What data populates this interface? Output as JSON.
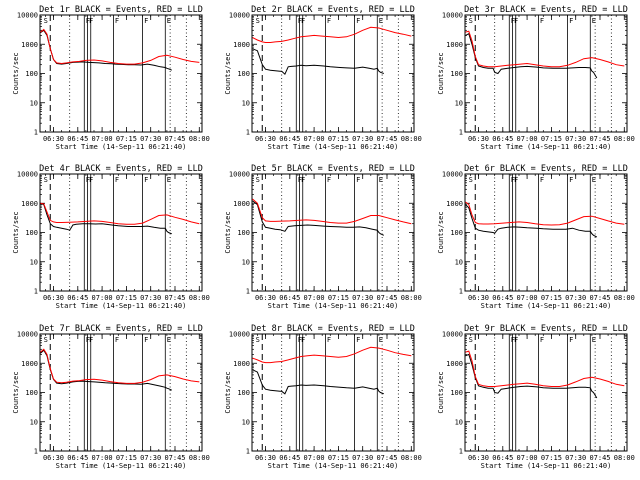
{
  "colors": {
    "events": "#000000",
    "lld": "#ff0000",
    "background": "#ffffff"
  },
  "chart_data": {
    "type": "line",
    "layout": "3x3 grid of panels",
    "xlabel": "Start Time (14-Sep-11 06:21:40)",
    "ylabel": "Counts/sec",
    "x_tick_labels": [
      "06:30",
      "06:45",
      "07:00",
      "07:15",
      "07:30",
      "07:45",
      "08:00"
    ],
    "x_tick_minutes": [
      30,
      45,
      60,
      75,
      90,
      105,
      120
    ],
    "xlim_minutes": [
      21.67,
      121.67
    ],
    "y_scale": "log",
    "ylim": [
      1,
      10000
    ],
    "y_tick_labels": [
      "1",
      "10",
      "100",
      "1000",
      "10000"
    ],
    "y_tick_values": [
      1,
      10,
      100,
      1000,
      10000
    ],
    "series_meta": [
      {
        "key": "events",
        "color": "#000000"
      },
      {
        "key": "lld",
        "color": "#ff0000"
      }
    ],
    "markers": {
      "dashed_minutes": [
        28
      ],
      "dotted_minutes": [
        40,
        102,
        112
      ],
      "solid_minutes": [
        49,
        51,
        53,
        67,
        85,
        99
      ],
      "letters": [
        {
          "text": "S",
          "minute": 23
        },
        {
          "text": "F",
          "minute": 49
        },
        {
          "text": "F",
          "minute": 51
        },
        {
          "text": "F",
          "minute": 67
        },
        {
          "text": "F",
          "minute": 85
        },
        {
          "text": "E",
          "minute": 99
        }
      ]
    },
    "panels": [
      {
        "title": "Det 1r BLACK = Events, RED = LLD",
        "events": {
          "x": [
            22,
            24,
            26,
            28,
            30,
            32,
            35,
            38,
            42,
            45,
            48,
            52,
            55,
            58,
            62,
            66,
            68,
            72,
            76,
            80,
            84,
            88,
            92,
            96,
            99,
            100,
            101,
            103
          ],
          "y": [
            2500,
            3000,
            2000,
            700,
            300,
            220,
            210,
            220,
            240,
            245,
            250,
            240,
            235,
            230,
            220,
            215,
            210,
            205,
            200,
            200,
            195,
            210,
            190,
            170,
            160,
            150,
            145,
            130
          ]
        },
        "lld": {
          "x": [
            22,
            24,
            26,
            28,
            30,
            32,
            35,
            38,
            42,
            46,
            50,
            55,
            60,
            65,
            70,
            75,
            80,
            85,
            90,
            95,
            100,
            105,
            110,
            115,
            120
          ],
          "y": [
            2600,
            3200,
            2200,
            700,
            300,
            230,
            220,
            230,
            250,
            260,
            280,
            290,
            270,
            240,
            220,
            210,
            210,
            230,
            280,
            380,
            420,
            360,
            300,
            260,
            240
          ]
        }
      },
      {
        "title": "Det 2r BLACK = Events, RED = LLD",
        "events": {
          "x": [
            22,
            25,
            28,
            30,
            33,
            36,
            39,
            40,
            42,
            44,
            46,
            49,
            52,
            55,
            60,
            66,
            70,
            76,
            80,
            85,
            90,
            94,
            97,
            99,
            100,
            101,
            103
          ],
          "y": [
            700,
            600,
            200,
            140,
            130,
            125,
            120,
            120,
            95,
            170,
            175,
            180,
            190,
            185,
            190,
            180,
            170,
            160,
            155,
            150,
            165,
            150,
            140,
            150,
            120,
            110,
            100
          ]
        },
        "lld": {
          "x": [
            22,
            25,
            28,
            30,
            33,
            36,
            40,
            44,
            48,
            52,
            56,
            60,
            65,
            70,
            75,
            80,
            85,
            90,
            95,
            100,
            105,
            110,
            115,
            120
          ],
          "y": [
            1700,
            1400,
            1200,
            1150,
            1150,
            1200,
            1250,
            1400,
            1600,
            1800,
            1900,
            2000,
            1900,
            1800,
            1700,
            1800,
            2200,
            3000,
            3800,
            3600,
            3000,
            2500,
            2200,
            1900
          ]
        }
      },
      {
        "title": "Det 3r BLACK = Events, RED = LLD",
        "events": {
          "x": [
            22,
            24,
            26,
            28,
            30,
            33,
            36,
            39,
            40,
            42,
            44,
            48,
            52,
            56,
            60,
            66,
            70,
            76,
            80,
            84,
            88,
            92,
            96,
            99,
            100,
            101,
            103
          ],
          "y": [
            2000,
            2300,
            1000,
            350,
            180,
            160,
            150,
            150,
            110,
            100,
            140,
            150,
            160,
            170,
            175,
            165,
            155,
            150,
            150,
            150,
            155,
            160,
            160,
            155,
            120,
            110,
            70
          ]
        },
        "lld": {
          "x": [
            22,
            24,
            26,
            28,
            30,
            33,
            36,
            40,
            44,
            48,
            52,
            56,
            60,
            65,
            70,
            75,
            80,
            85,
            90,
            95,
            100,
            105,
            110,
            115,
            120
          ],
          "y": [
            2600,
            2800,
            1300,
            380,
            200,
            180,
            170,
            170,
            180,
            190,
            200,
            210,
            220,
            200,
            180,
            170,
            170,
            190,
            240,
            320,
            350,
            300,
            250,
            200,
            180
          ]
        }
      },
      {
        "title": "Det 4r BLACK = Events, RED = LLD",
        "events": {
          "x": [
            22,
            24,
            26,
            28,
            30,
            32,
            35,
            38,
            40,
            42,
            44,
            48,
            52,
            56,
            60,
            66,
            70,
            76,
            80,
            84,
            88,
            92,
            96,
            99,
            100,
            101,
            103
          ],
          "y": [
            1000,
            900,
            400,
            200,
            160,
            150,
            140,
            130,
            120,
            180,
            190,
            200,
            200,
            195,
            200,
            180,
            170,
            160,
            160,
            160,
            165,
            150,
            140,
            140,
            110,
            100,
            90
          ]
        },
        "lld": {
          "x": [
            22,
            24,
            26,
            28,
            30,
            32,
            35,
            40,
            45,
            50,
            55,
            60,
            65,
            70,
            75,
            80,
            85,
            90,
            95,
            100,
            105,
            110,
            115,
            120
          ],
          "y": [
            1000,
            950,
            500,
            260,
            230,
            220,
            220,
            225,
            230,
            240,
            250,
            240,
            220,
            200,
            190,
            190,
            210,
            280,
            380,
            400,
            330,
            280,
            230,
            200
          ]
        }
      },
      {
        "title": "Det 5r BLACK = Events, RED = LLD",
        "events": {
          "x": [
            22,
            25,
            28,
            30,
            33,
            36,
            39,
            40,
            42,
            44,
            48,
            52,
            56,
            60,
            66,
            70,
            76,
            80,
            84,
            88,
            92,
            96,
            99,
            100,
            101,
            103
          ],
          "y": [
            1200,
            900,
            230,
            150,
            140,
            130,
            125,
            120,
            110,
            160,
            170,
            175,
            180,
            175,
            165,
            160,
            155,
            150,
            150,
            155,
            145,
            130,
            120,
            100,
            90,
            80
          ]
        },
        "lld": {
          "x": [
            22,
            25,
            28,
            30,
            33,
            36,
            40,
            45,
            50,
            55,
            60,
            65,
            70,
            75,
            80,
            85,
            90,
            95,
            100,
            105,
            110,
            115,
            120
          ],
          "y": [
            1400,
            1000,
            320,
            250,
            240,
            240,
            245,
            250,
            260,
            270,
            260,
            240,
            220,
            210,
            210,
            240,
            300,
            380,
            380,
            320,
            270,
            230,
            200
          ]
        }
      },
      {
        "title": "Det 6r BLACK = Events, RED = LLD",
        "events": {
          "x": [
            22,
            24,
            26,
            28,
            30,
            33,
            36,
            39,
            40,
            42,
            44,
            48,
            52,
            56,
            60,
            66,
            70,
            76,
            80,
            84,
            88,
            92,
            96,
            99,
            100,
            101,
            103
          ],
          "y": [
            900,
            700,
            300,
            140,
            120,
            110,
            105,
            100,
            95,
            130,
            140,
            150,
            155,
            150,
            145,
            140,
            135,
            130,
            130,
            130,
            140,
            120,
            110,
            110,
            90,
            80,
            70
          ]
        },
        "lld": {
          "x": [
            22,
            24,
            26,
            28,
            30,
            33,
            36,
            40,
            45,
            50,
            55,
            60,
            65,
            70,
            75,
            80,
            85,
            90,
            95,
            100,
            105,
            110,
            115,
            120
          ],
          "y": [
            1100,
            900,
            400,
            220,
            200,
            195,
            195,
            200,
            210,
            220,
            230,
            220,
            200,
            185,
            180,
            185,
            210,
            270,
            350,
            360,
            300,
            250,
            210,
            190
          ]
        }
      },
      {
        "title": "Det 7r BLACK = Events, RED = LLD",
        "events": {
          "x": [
            22,
            24,
            26,
            28,
            30,
            32,
            35,
            38,
            42,
            45,
            48,
            52,
            55,
            58,
            62,
            66,
            68,
            72,
            76,
            80,
            84,
            88,
            92,
            96,
            99,
            100,
            101,
            103
          ],
          "y": [
            2200,
            2800,
            1800,
            600,
            280,
            210,
            200,
            210,
            230,
            240,
            245,
            235,
            230,
            225,
            215,
            210,
            205,
            200,
            195,
            195,
            190,
            205,
            185,
            165,
            150,
            140,
            135,
            120
          ]
        },
        "lld": {
          "x": [
            22,
            24,
            26,
            28,
            30,
            32,
            35,
            38,
            42,
            46,
            50,
            55,
            60,
            65,
            70,
            75,
            80,
            85,
            90,
            95,
            100,
            105,
            110,
            115,
            120
          ],
          "y": [
            2400,
            3000,
            2000,
            650,
            290,
            225,
            215,
            225,
            245,
            255,
            275,
            285,
            265,
            235,
            215,
            205,
            205,
            225,
            275,
            370,
            400,
            350,
            290,
            250,
            230
          ]
        }
      },
      {
        "title": "Det 8r BLACK = Events, RED = LLD",
        "events": {
          "x": [
            22,
            25,
            28,
            30,
            33,
            36,
            39,
            40,
            42,
            44,
            46,
            49,
            52,
            55,
            60,
            66,
            70,
            76,
            80,
            85,
            90,
            94,
            97,
            99,
            100,
            101,
            103
          ],
          "y": [
            600,
            500,
            180,
            130,
            120,
            115,
            110,
            110,
            90,
            160,
            165,
            170,
            180,
            175,
            180,
            170,
            160,
            150,
            145,
            140,
            155,
            140,
            130,
            140,
            110,
            100,
            90
          ]
        },
        "lld": {
          "x": [
            22,
            25,
            28,
            30,
            33,
            36,
            40,
            44,
            48,
            52,
            56,
            60,
            65,
            70,
            75,
            80,
            85,
            90,
            95,
            100,
            105,
            110,
            115,
            120
          ],
          "y": [
            1500,
            1300,
            1100,
            1050,
            1050,
            1100,
            1150,
            1300,
            1500,
            1700,
            1800,
            1900,
            1800,
            1700,
            1600,
            1700,
            2100,
            2800,
            3500,
            3300,
            2800,
            2300,
            2000,
            1800
          ]
        }
      },
      {
        "title": "Det 9r BLACK = Events, RED = LLD",
        "events": {
          "x": [
            22,
            24,
            26,
            28,
            30,
            33,
            36,
            39,
            40,
            42,
            44,
            48,
            52,
            56,
            60,
            66,
            70,
            76,
            80,
            84,
            88,
            92,
            96,
            99,
            100,
            101,
            103
          ],
          "y": [
            1800,
            2000,
            900,
            320,
            170,
            150,
            140,
            140,
            100,
            95,
            130,
            140,
            150,
            160,
            165,
            155,
            145,
            140,
            140,
            140,
            145,
            150,
            150,
            145,
            110,
            100,
            65
          ]
        },
        "lld": {
          "x": [
            22,
            24,
            26,
            28,
            30,
            33,
            36,
            40,
            44,
            48,
            52,
            56,
            60,
            65,
            70,
            75,
            80,
            85,
            90,
            95,
            100,
            105,
            110,
            115,
            120
          ],
          "y": [
            2400,
            2600,
            1200,
            350,
            190,
            170,
            160,
            160,
            170,
            180,
            190,
            200,
            210,
            190,
            170,
            160,
            160,
            180,
            230,
            300,
            330,
            290,
            240,
            190,
            170
          ]
        }
      }
    ]
  }
}
